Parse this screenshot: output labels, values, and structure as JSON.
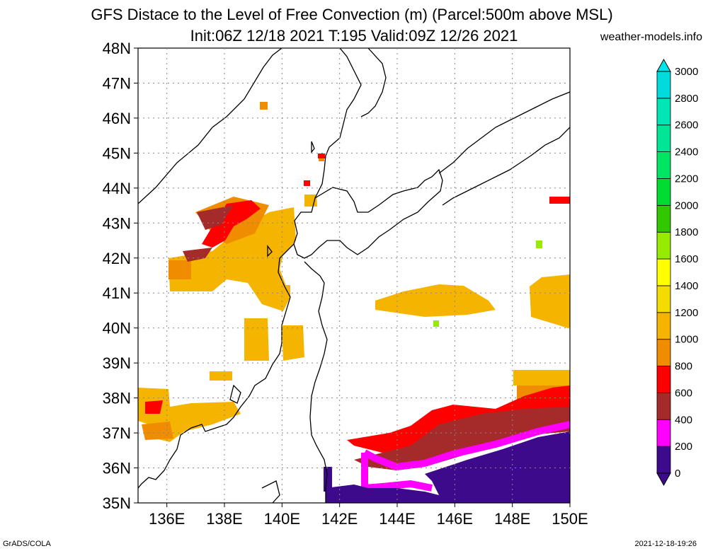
{
  "header": {
    "title_line1": "GFS Distace to the Level of Free Convection (m) (Parcel:500m above MSL)",
    "title_line2": "Init:06Z 12/18 2021 T:195 Valid:09Z 12/26 2021",
    "site": "weather-models.info"
  },
  "map": {
    "lat_labels": [
      "48N",
      "47N",
      "46N",
      "45N",
      "44N",
      "43N",
      "42N",
      "41N",
      "40N",
      "39N",
      "38N",
      "37N",
      "36N",
      "35N"
    ],
    "lon_labels": [
      "136E",
      "138E",
      "140E",
      "142E",
      "144E",
      "146E",
      "148E",
      "150E"
    ],
    "lat_range": [
      35,
      48
    ],
    "lon_range": [
      135,
      150
    ],
    "grid": "dotted"
  },
  "colorbar": {
    "labels": [
      "0",
      "200",
      "400",
      "600",
      "800",
      "1000",
      "1200",
      "1400",
      "1600",
      "1800",
      "2000",
      "2200",
      "2400",
      "2600",
      "2800",
      "3000"
    ],
    "colors": [
      "#3d0a8c",
      "#ff00ff",
      "#a52a2a",
      "#ff0000",
      "#f08c00",
      "#f5b400",
      "#f5dc00",
      "#ffff00",
      "#96eb00",
      "#32c800",
      "#00dc32",
      "#00e664",
      "#00e696",
      "#00e6b4",
      "#00dcdc",
      "#00e6e6"
    ]
  },
  "footer": {
    "left": "GrADS/COLA",
    "right": "2021-12-18-19:26"
  }
}
